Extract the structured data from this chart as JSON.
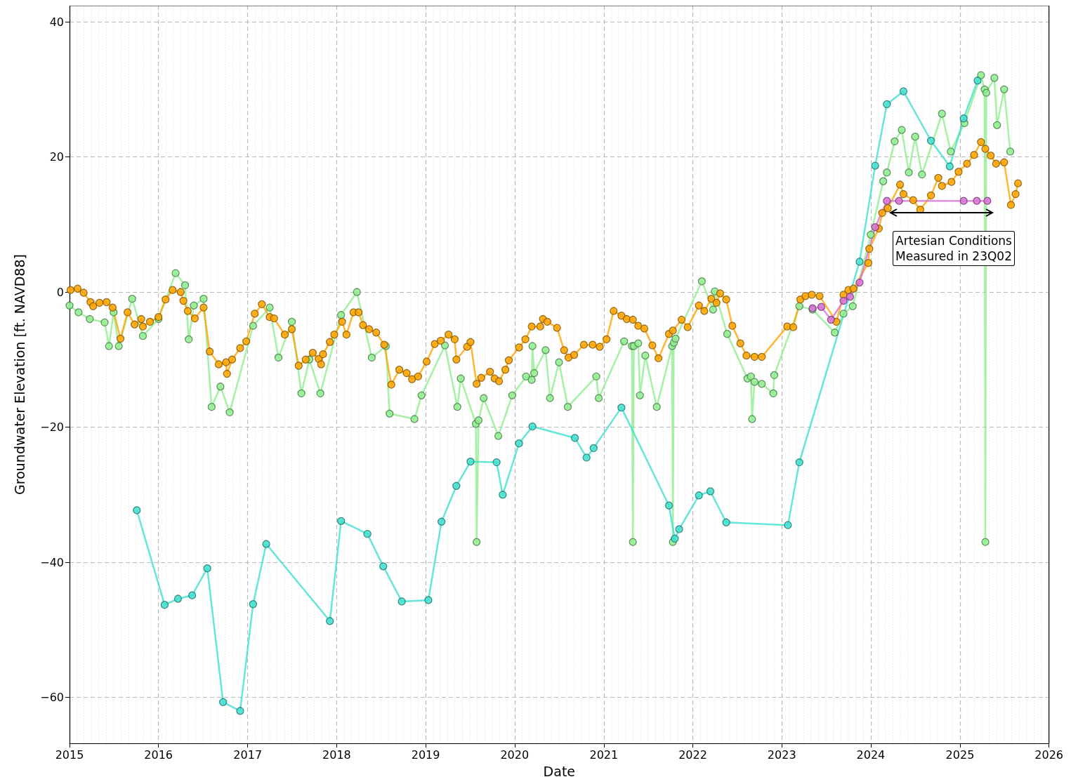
{
  "chart_data": {
    "type": "line",
    "xlabel": "Date",
    "ylabel": "Groundwater Elevation [ft. NAVD88]",
    "xlim": [
      "2015-01-01",
      "2026-01-01"
    ],
    "xticks": [
      {
        "value": "2015-01-01",
        "label": "2015"
      },
      {
        "value": "2016-01-01",
        "label": "2016"
      },
      {
        "value": "2017-01-01",
        "label": "2017"
      },
      {
        "value": "2018-01-01",
        "label": "2018"
      },
      {
        "value": "2019-01-01",
        "label": "2019"
      },
      {
        "value": "2020-01-01",
        "label": "2020"
      },
      {
        "value": "2021-01-01",
        "label": "2021"
      },
      {
        "value": "2022-01-01",
        "label": "2022"
      },
      {
        "value": "2023-01-01",
        "label": "2023"
      },
      {
        "value": "2024-01-01",
        "label": "2024"
      },
      {
        "value": "2025-01-01",
        "label": "2025"
      },
      {
        "value": "2026-01-01",
        "label": "2026"
      }
    ],
    "ylim": [
      -66.8,
      42.4
    ],
    "yticks": [
      -60,
      -40,
      -20,
      0,
      20,
      40
    ],
    "grid": true,
    "marker": "circle",
    "line_style": "solid",
    "annotations": [
      "Artesian Conditions\nMeasured in 23Q02"
    ],
    "series": [
      {
        "color": "#90ee90",
        "x": [
          "2015-01-01",
          "2015-02-07",
          "2015-03-25",
          "2015-05-25",
          "2015-06-12",
          "2015-07-01",
          "2015-07-22",
          "2015-09-15",
          "2015-10-29",
          "2016-01-01",
          "2016-03-11",
          "2016-04-19",
          "2016-05-04",
          "2016-05-25",
          "2016-07-04",
          "2016-08-06",
          "2016-09-11",
          "2016-10-19",
          "2017-01-23",
          "2017-04-01",
          "2017-05-07",
          "2017-07-01",
          "2017-08-09",
          "2017-09-11",
          "2017-10-26",
          "2018-01-19",
          "2018-03-25",
          "2018-05-25",
          "2018-07-22",
          "2018-08-06",
          "2018-11-16",
          "2018-12-15",
          "2019-03-21",
          "2019-05-11",
          "2019-05-25",
          "2019-07-26",
          "2019-07-29",
          "2019-08-06",
          "2019-08-27",
          "2019-10-26",
          "2019-12-22",
          "2020-02-17",
          "2020-03-11",
          "2020-03-14",
          "2020-03-21",
          "2020-05-07",
          "2020-05-25",
          "2020-07-01",
          "2020-08-06",
          "2020-12-01",
          "2020-12-11",
          "2021-03-25",
          "2021-04-26",
          "2021-04-30",
          "2021-05-04",
          "2021-05-22",
          "2021-05-29",
          "2021-06-20",
          "2021-08-06",
          "2021-10-08",
          "2021-10-11",
          "2021-10-15",
          "2021-10-22",
          "2022-02-07",
          "2022-03-25",
          "2022-04-01",
          "2022-05-22",
          "2022-08-13",
          "2022-08-27",
          "2022-09-01",
          "2022-09-11",
          "2022-10-11",
          "2022-11-27",
          "2022-12-01",
          "2023-03-14",
          "2023-05-07",
          "2023-08-06",
          "2023-09-11",
          "2023-10-19",
          "2024-01-01",
          "2024-02-21",
          "2024-03-07",
          "2024-04-08",
          "2024-05-07",
          "2024-06-05",
          "2024-07-01",
          "2024-07-29",
          "2024-10-19",
          "2024-11-24",
          "2025-01-19",
          "2025-03-28",
          "2025-04-12",
          "2025-04-15",
          "2025-04-19",
          "2025-05-22",
          "2025-06-02",
          "2025-07-01",
          "2025-07-26"
        ],
        "values": [
          -2,
          -3,
          -4,
          -4.5,
          -8,
          -3,
          -8,
          -1,
          -6.5,
          -4,
          2.8,
          1,
          -7,
          -2,
          -1,
          -17,
          -14,
          -17.8,
          -5,
          -2.3,
          -9.7,
          -4.4,
          -15,
          -10,
          -15,
          -3.4,
          0,
          -9.7,
          -8,
          -18,
          -18.8,
          -15.3,
          -7.9,
          -17,
          -12.8,
          -19.5,
          -37,
          -19,
          -15.7,
          -21.3,
          -15.3,
          -12.5,
          -13,
          -8,
          -12,
          -8.6,
          -15.7,
          -10.4,
          -17,
          -12.5,
          -15.7,
          -7.3,
          -8,
          -37,
          -8,
          -7.6,
          -15.3,
          -9.4,
          -17,
          -8,
          -37,
          -7.5,
          -6.9,
          1.6,
          -2.6,
          0.1,
          -6.2,
          -12.8,
          -12.5,
          -18.8,
          -13.3,
          -13.6,
          -15,
          -12.3,
          -2.1,
          -2.6,
          -6,
          -3.2,
          -2.1,
          8.5,
          16.4,
          17.7,
          22.3,
          24,
          17.7,
          23,
          17.4,
          26.4,
          20.8,
          25,
          32.1,
          30,
          -37,
          29.5,
          31.7,
          24.7,
          30,
          20.8
        ]
      },
      {
        "color": "#ffa500",
        "x": [
          "2015-01-05",
          "2015-02-03",
          "2015-02-28",
          "2015-03-28",
          "2015-04-08",
          "2015-05-04",
          "2015-06-02",
          "2015-06-27",
          "2015-07-29",
          "2015-08-27",
          "2015-09-25",
          "2015-10-22",
          "2015-10-29",
          "2015-11-27",
          "2016-01-01",
          "2016-01-30",
          "2016-02-28",
          "2016-04-01",
          "2016-04-12",
          "2016-04-30",
          "2016-05-29",
          "2016-07-04",
          "2016-07-29",
          "2016-09-04",
          "2016-10-04",
          "2016-10-08",
          "2016-10-29",
          "2016-12-01",
          "2016-12-26",
          "2017-01-30",
          "2017-02-28",
          "2017-04-01",
          "2017-04-19",
          "2017-06-02",
          "2017-07-01",
          "2017-07-29",
          "2017-08-27",
          "2017-09-25",
          "2017-10-19",
          "2017-10-29",
          "2017-11-06",
          "2017-12-04",
          "2017-12-22",
          "2018-01-23",
          "2018-02-10",
          "2018-03-11",
          "2018-04-01",
          "2018-04-19",
          "2018-05-14",
          "2018-06-12",
          "2018-07-15",
          "2018-08-13",
          "2018-09-15",
          "2018-10-15",
          "2018-11-06",
          "2018-12-01",
          "2019-01-05",
          "2019-02-07",
          "2019-03-04",
          "2019-04-05",
          "2019-04-30",
          "2019-05-07",
          "2019-06-20",
          "2019-07-04",
          "2019-07-29",
          "2019-08-17",
          "2019-09-22",
          "2019-10-11",
          "2019-10-29",
          "2019-11-24",
          "2019-12-08",
          "2020-01-19",
          "2020-02-14",
          "2020-03-11",
          "2020-04-15",
          "2020-04-26",
          "2020-05-14",
          "2020-06-23",
          "2020-07-22",
          "2020-08-09",
          "2020-09-01",
          "2020-10-11",
          "2020-11-16",
          "2020-12-15",
          "2021-01-12",
          "2021-02-10",
          "2021-03-14",
          "2021-04-05",
          "2021-04-30",
          "2021-05-22",
          "2021-06-16",
          "2021-07-19",
          "2021-08-13",
          "2021-09-25",
          "2021-10-11",
          "2021-11-16",
          "2021-12-11",
          "2022-01-26",
          "2022-02-17",
          "2022-03-18",
          "2022-04-08",
          "2022-04-23",
          "2022-05-18",
          "2022-06-12",
          "2022-07-15",
          "2022-08-09",
          "2022-09-11",
          "2022-10-11",
          "2023-01-23",
          "2023-02-17",
          "2023-03-18",
          "2023-04-08",
          "2023-05-04",
          "2023-06-05",
          "2023-08-13",
          "2023-09-11",
          "2023-10-01",
          "2023-10-22",
          "2023-12-22",
          "2023-12-26",
          "2024-02-03",
          "2024-02-17",
          "2024-03-11",
          "2024-04-30",
          "2024-05-14",
          "2024-06-23",
          "2024-07-22",
          "2024-09-04",
          "2024-10-04",
          "2024-10-19",
          "2024-11-27",
          "2024-12-26",
          "2025-01-30",
          "2025-02-28",
          "2025-03-28",
          "2025-04-15",
          "2025-05-07",
          "2025-05-29",
          "2025-07-01",
          "2025-07-29",
          "2025-08-17",
          "2025-08-27"
        ],
        "values": [
          0.3,
          0.5,
          -0.1,
          -1.5,
          -2.1,
          -1.6,
          -1.5,
          -2.3,
          -6.9,
          -3,
          -4.8,
          -4,
          -5.1,
          -4.4,
          -3.7,
          -1.1,
          0.3,
          0,
          -1.3,
          -2.8,
          -3.9,
          -2.3,
          -8.8,
          -10.7,
          -10.4,
          -12.1,
          -10,
          -8.3,
          -7.3,
          -3.2,
          -1.8,
          -3.7,
          -3.9,
          -6.3,
          -5.5,
          -10.9,
          -10,
          -9,
          -9.9,
          -10.7,
          -9.2,
          -7.4,
          -6.3,
          -4.4,
          -6.3,
          -3,
          -3,
          -4.9,
          -5.5,
          -6,
          -7.8,
          -13.7,
          -11.5,
          -12,
          -12.9,
          -12.5,
          -10.3,
          -7.7,
          -7.2,
          -6.3,
          -7,
          -10,
          -8.1,
          -7.4,
          -13.6,
          -12.7,
          -11.8,
          -12.8,
          -13.2,
          -11.5,
          -10.1,
          -8.2,
          -7,
          -5.1,
          -5.1,
          -4,
          -4.4,
          -5.3,
          -8.6,
          -9.7,
          -9.3,
          -7.8,
          -7.8,
          -8.1,
          -7,
          -2.8,
          -3.5,
          -4,
          -4.1,
          -5,
          -5.4,
          -7.9,
          -9.8,
          -6.2,
          -5.7,
          -4.1,
          -5.2,
          -2,
          -2.8,
          -1,
          -1.6,
          -0.2,
          -1.1,
          -5,
          -7.6,
          -9.4,
          -9.6,
          -9.6,
          -5.1,
          -5.2,
          -1.1,
          -0.6,
          -0.4,
          -0.6,
          -4.4,
          -0.4,
          0.3,
          0.5,
          4.3,
          6.4,
          9.4,
          11.7,
          12.4,
          15.9,
          14.5,
          13.6,
          12.2,
          14.3,
          16.9,
          15.7,
          16.3,
          17.8,
          19,
          20.3,
          22.2,
          21.2,
          20.2,
          19,
          19.2,
          12.9,
          14.5,
          16.1
        ]
      },
      {
        "color": "#da70d6",
        "x": [
          "2023-05-07",
          "2023-06-12",
          "2023-07-22",
          "2023-09-11",
          "2023-10-08",
          "2023-11-16",
          "2024-01-19",
          "2024-03-07",
          "2024-04-26",
          "2025-01-16",
          "2025-03-11",
          "2025-04-23"
        ],
        "values": [
          -2.4,
          -2.2,
          -4.1,
          -1.3,
          -0.7,
          1.4,
          9.6,
          13.5,
          13.5,
          13.5,
          13.5,
          13.5
        ]
      },
      {
        "color": "#40e0d0",
        "x": [
          "2015-10-04",
          "2016-01-26",
          "2016-03-21",
          "2016-05-18",
          "2016-07-19",
          "2016-09-22",
          "2016-12-01",
          "2017-01-23",
          "2017-03-18",
          "2017-12-04",
          "2018-01-19",
          "2018-05-07",
          "2018-07-11",
          "2018-09-25",
          "2019-01-12",
          "2019-03-07",
          "2019-05-07",
          "2019-07-04",
          "2019-10-19",
          "2019-11-13",
          "2020-01-19",
          "2020-03-14",
          "2020-09-04",
          "2020-10-22",
          "2020-11-20",
          "2021-03-14",
          "2021-09-25",
          "2021-10-19",
          "2021-11-06",
          "2022-01-26",
          "2022-03-14",
          "2022-05-18",
          "2023-01-26",
          "2023-03-14",
          "2023-11-16",
          "2024-01-19",
          "2024-03-07",
          "2024-05-14",
          "2024-09-04",
          "2024-11-20",
          "2025-01-16",
          "2025-03-14"
        ],
        "values": [
          -32.3,
          -46.3,
          -45.4,
          -44.9,
          -40.9,
          -60.7,
          -62,
          -46.2,
          -37.3,
          -48.7,
          -33.9,
          -35.8,
          -40.6,
          -45.8,
          -45.6,
          -34,
          -28.7,
          -25.1,
          -25.2,
          -30,
          -22.4,
          -19.9,
          -21.6,
          -24.5,
          -23.1,
          -17.1,
          -31.6,
          -36.5,
          -35.1,
          -30.1,
          -29.5,
          -34.1,
          -34.5,
          -25.2,
          4.5,
          18.7,
          27.8,
          29.7,
          22.4,
          18.6,
          25.7,
          31.3
        ]
      }
    ]
  }
}
